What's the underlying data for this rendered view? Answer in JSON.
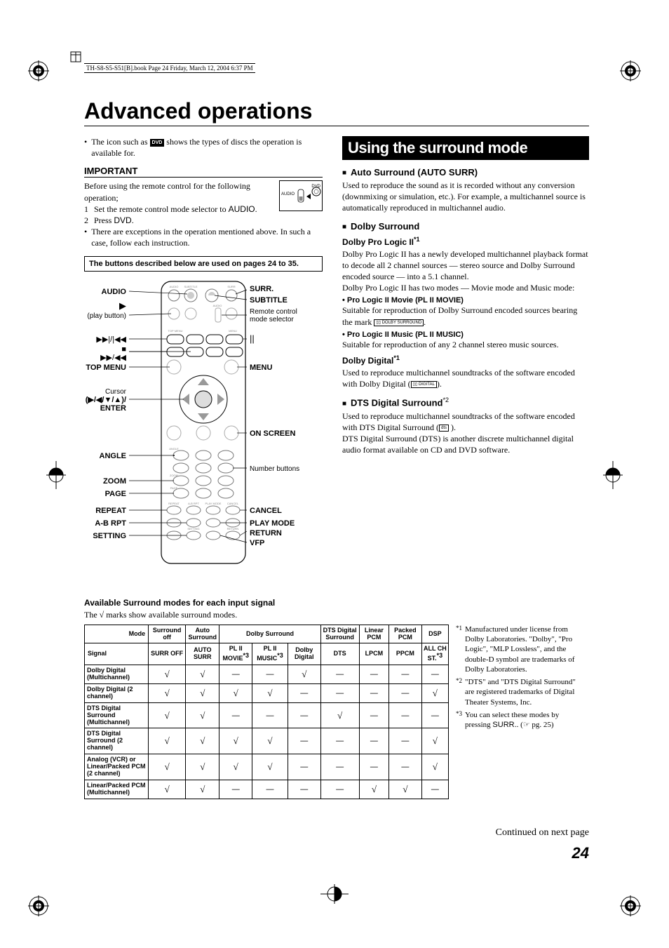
{
  "meta": {
    "header_text": "TH-S8-S5-S51[B].book  Page 24  Friday, March 12, 2004  6:37 PM"
  },
  "title": "Advanced operations",
  "intro": {
    "line1_pre": "The icon such as ",
    "line1_post": " shows the types of discs the operation is available for.",
    "dvd_badge": "DVD"
  },
  "important": {
    "heading": "IMPORTANT",
    "lead": "Before using the remote control for the following operation;",
    "step1_num": "1",
    "step1_text": "Set the remote control mode selector to ",
    "step1_bold": "AUDIO",
    "step2_num": "2",
    "step2_text": "Press ",
    "step2_bold": "DVD",
    "note": "There are exceptions in the operation mentioned above. In such a case, follow each instruction.",
    "box": "The buttons described below are used on pages 24 to 35.",
    "remote_audio": "AUDIO",
    "remote_dvd": "DVD"
  },
  "diagram": {
    "labels_left": [
      "AUDIO",
      "",
      "(play button)",
      "",
      "",
      "",
      "TOP MENU",
      "",
      "",
      "",
      "",
      "ANGLE",
      "ZOOM",
      "PAGE",
      "REPEAT",
      "A-B RPT",
      "SETTING"
    ],
    "labels_right": [
      "SURR.",
      "SUBTITLE",
      "Remote control mode selector",
      "",
      "",
      "MENU",
      "",
      "",
      "",
      "ON SCREEN",
      "",
      "Number buttons",
      "",
      "",
      "CANCEL",
      "PLAY MODE",
      "RETURN",
      "VFP"
    ],
    "play_btn": "▶",
    "skip1": "▶▶|/|◀◀",
    "stop": "■",
    "skip2": "▶▶/◀◀",
    "pause": "||",
    "cursor": "Cursor (▶/◀/▼/▲)/ ENTER"
  },
  "right": {
    "section_title": "Using the surround mode",
    "auto_surr": {
      "heading": "Auto Surround (AUTO SURR)",
      "body": "Used to reproduce the sound as it is recorded without any conversion (downmixing or simulation, etc.). For example, a multichannel source is automatically reproduced in multichannel audio."
    },
    "dolby": {
      "heading": "Dolby Surround",
      "pl2_heading": "Dolby Pro Logic II",
      "pl2_sup": "*1",
      "pl2_body1": "Dolby Pro Logic II has a newly developed multichannel playback format to decode all 2 channel sources — stereo source and Dolby Surround encoded source — into a 5.1 channel.",
      "pl2_body2": "Dolby Pro Logic II has two modes — Movie mode and Music mode:",
      "movie_hdr": "Pro Logic II Movie (PL II MOVIE)",
      "movie_body": "Suitable for reproduction of Dolby Surround encoded sources bearing the mark ",
      "music_hdr": "Pro Logic II Music (PL II MUSIC)",
      "music_body": "Suitable for reproduction of any 2 channel stereo music sources.",
      "dd_heading": "Dolby Digital",
      "dd_sup": "*1",
      "dd_body": "Used to reproduce multichannel soundtracks of the software encoded with Dolby Digital ("
    },
    "dts": {
      "heading": "DTS Digital Surround",
      "sup": "*2",
      "body1": "Used to reproduce multichannel soundtracks of the software encoded with DTS Digital Surround (",
      "body2": "DTS Digital Surround (DTS) is another discrete multichannel digital audio format available on CD and DVD software."
    }
  },
  "table": {
    "title": "Available Surround modes for each input signal",
    "sub": "The √ marks show available surround modes.",
    "top_headers": {
      "mode": "Mode",
      "surr_off": "Surround off",
      "auto_surr": "Auto Surround",
      "dolby_surr": "Dolby Surround",
      "dts_surr": "DTS Digital Surround",
      "lpcm": "Linear PCM",
      "ppcm": "Packed PCM",
      "dsp": "DSP"
    },
    "sub_headers": {
      "signal": "Signal",
      "surr_off": "SURR OFF",
      "auto_surr": "AUTO SURR",
      "pl2_movie": "PL II MOVIE",
      "pl2_movie_sup": "*3",
      "pl2_music": "PL II MUSIC",
      "pl2_music_sup": "*3",
      "dd": "Dolby Digital",
      "dts": "DTS",
      "lpcm": "LPCM",
      "ppcm": "PPCM",
      "all_ch": "ALL CH ST.",
      "all_ch_sup": "*3"
    },
    "rows": [
      {
        "label": "Dolby Digital (Multichannel)",
        "cells": [
          "√",
          "√",
          "—",
          "—",
          "√",
          "—",
          "—",
          "—",
          "—"
        ]
      },
      {
        "label": "Dolby Digital (2 channel)",
        "cells": [
          "√",
          "√",
          "√",
          "√",
          "—",
          "—",
          "—",
          "—",
          "√"
        ]
      },
      {
        "label": "DTS Digital Surround (Multichannel)",
        "cells": [
          "√",
          "√",
          "—",
          "—",
          "—",
          "√",
          "—",
          "—",
          "—"
        ]
      },
      {
        "label": "DTS Digital Surround (2 channel)",
        "cells": [
          "√",
          "√",
          "√",
          "√",
          "—",
          "—",
          "—",
          "—",
          "√"
        ]
      },
      {
        "label": "Analog (VCR) or Linear/Packed PCM (2 channel)",
        "cells": [
          "√",
          "√",
          "√",
          "√",
          "—",
          "—",
          "—",
          "—",
          "√"
        ]
      },
      {
        "label": "Linear/Packed PCM (Multichannel)",
        "cells": [
          "√",
          "√",
          "—",
          "—",
          "—",
          "—",
          "√",
          "√",
          "—"
        ]
      }
    ],
    "col_widths": [
      "86px",
      "50px",
      "44px",
      "44px",
      "48px",
      "44px",
      "52px",
      "40px",
      "44px",
      "36px"
    ]
  },
  "footnotes": {
    "f1_mark": "*1",
    "f1": "Manufactured under license from Dolby Laboratories. \"Dolby\", \"Pro Logic\", \"MLP Lossless\", and the double-D symbol are trademarks of Dolby Laboratories.",
    "f2_mark": "*2",
    "f2": "\"DTS\" and \"DTS Digital Surround\" are registered trademarks of Digital Theater Systems, Inc.",
    "f3_mark": "*3",
    "f3": "You can select these modes by pressing ",
    "f3_bold": "SURR.",
    "f3_ref": ". (☞ pg. 25)"
  },
  "continued": "Continued on next page",
  "page_number": "24"
}
